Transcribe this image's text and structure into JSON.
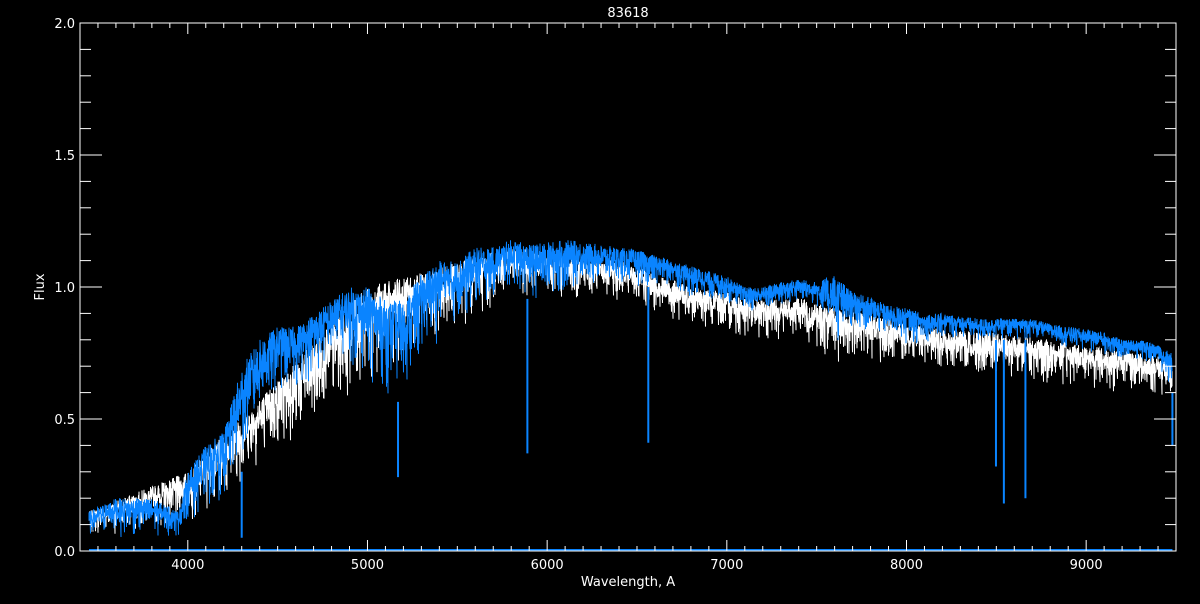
{
  "chart_data": {
    "type": "line",
    "title": "83618",
    "xlabel": "Wavelength, A",
    "ylabel": "Flux",
    "xlim": [
      3400,
      9500
    ],
    "ylim": [
      0,
      2.0
    ],
    "xticks": [
      4000,
      5000,
      6000,
      7000,
      8000,
      9000
    ],
    "yticks": [
      "0.0",
      "0.5",
      "1.0",
      "1.5",
      "2.0"
    ],
    "ytick_values": [
      0,
      0.5,
      1.0,
      1.5,
      2.0
    ],
    "grid": false,
    "background": "#000000",
    "axis_color": "#ffffff",
    "series": [
      {
        "color": "#ffffff",
        "envelope": {
          "x": [
            3450,
            4000,
            5000,
            5800,
            6400,
            6600,
            6800,
            7000,
            7200,
            7400,
            7600,
            7800,
            8000,
            8200,
            8400,
            8600,
            8800,
            9000,
            9200,
            9400,
            9480
          ],
          "upper": [
            0.15,
            0.3,
            1.0,
            1.15,
            1.1,
            1.05,
            1.0,
            0.98,
            0.95,
            0.96,
            0.92,
            0.9,
            0.86,
            0.84,
            0.83,
            0.82,
            0.8,
            0.78,
            0.76,
            0.74,
            0.72
          ],
          "lower": [
            0.05,
            0.1,
            0.65,
            0.95,
            0.95,
            0.9,
            0.85,
            0.82,
            0.78,
            0.8,
            0.7,
            0.72,
            0.7,
            0.68,
            0.66,
            0.65,
            0.62,
            0.62,
            0.6,
            0.58,
            0.55
          ]
        }
      },
      {
        "color": "#0a84ff",
        "envelope": {
          "x": [
            3450,
            3600,
            3800,
            3950,
            4000,
            4100,
            4200,
            4300,
            4400,
            4500,
            4600,
            4700,
            4800,
            4900,
            5000,
            5100,
            5200,
            5300,
            5400,
            5500,
            5600,
            5700,
            5800,
            5900,
            6000,
            6100,
            6200,
            6300,
            6400,
            6500,
            6600,
            6700,
            6800,
            6900,
            7000,
            7100,
            7200,
            7300,
            7400,
            7500,
            7600,
            7700,
            7800,
            7900,
            8000,
            8100,
            8200,
            8300,
            8400,
            8500,
            8600,
            8700,
            8800,
            8900,
            9000,
            9100,
            9200,
            9300,
            9400,
            9480
          ],
          "upper": [
            0.15,
            0.2,
            0.2,
            0.15,
            0.3,
            0.4,
            0.45,
            0.7,
            0.8,
            0.85,
            0.85,
            0.9,
            0.95,
            1.0,
            1.0,
            0.95,
            0.95,
            1.05,
            1.1,
            1.1,
            1.15,
            1.15,
            1.18,
            1.16,
            1.17,
            1.18,
            1.17,
            1.16,
            1.15,
            1.14,
            1.12,
            1.1,
            1.08,
            1.06,
            1.04,
            1.0,
            1.0,
            1.02,
            1.03,
            1.02,
            1.05,
            0.98,
            0.96,
            0.93,
            0.92,
            0.9,
            0.9,
            0.89,
            0.88,
            0.88,
            0.88,
            0.88,
            0.86,
            0.85,
            0.84,
            0.83,
            0.8,
            0.8,
            0.78,
            0.75
          ],
          "lower": [
            0.05,
            0.05,
            0.05,
            0.05,
            0.1,
            0.15,
            0.2,
            0.3,
            0.5,
            0.6,
            0.6,
            0.65,
            0.7,
            0.7,
            0.65,
            0.6,
            0.55,
            0.7,
            0.8,
            0.85,
            0.9,
            0.95,
            1.0,
            0.95,
            0.95,
            0.98,
            1.0,
            1.0,
            1.0,
            1.0,
            1.0,
            1.0,
            0.95,
            0.95,
            0.93,
            0.9,
            0.9,
            0.92,
            0.93,
            0.92,
            0.75,
            0.85,
            0.82,
            0.8,
            0.78,
            0.78,
            0.8,
            0.8,
            0.78,
            0.8,
            0.8,
            0.8,
            0.78,
            0.76,
            0.75,
            0.74,
            0.72,
            0.72,
            0.7,
            0.6
          ]
        },
        "absorption_lines": [
          {
            "x": 4300,
            "y": 0.05
          },
          {
            "x": 5170,
            "y": 0.28
          },
          {
            "x": 5890,
            "y": 0.37
          },
          {
            "x": 6563,
            "y": 0.41
          },
          {
            "x": 8498,
            "y": 0.32
          },
          {
            "x": 8542,
            "y": 0.18
          },
          {
            "x": 8662,
            "y": 0.2
          },
          {
            "x": 9480,
            "y": 0.4
          }
        ]
      },
      {
        "color": "#0a84ff",
        "x": [
          3450,
          9480
        ],
        "y": [
          0.0,
          0.0
        ]
      }
    ]
  }
}
